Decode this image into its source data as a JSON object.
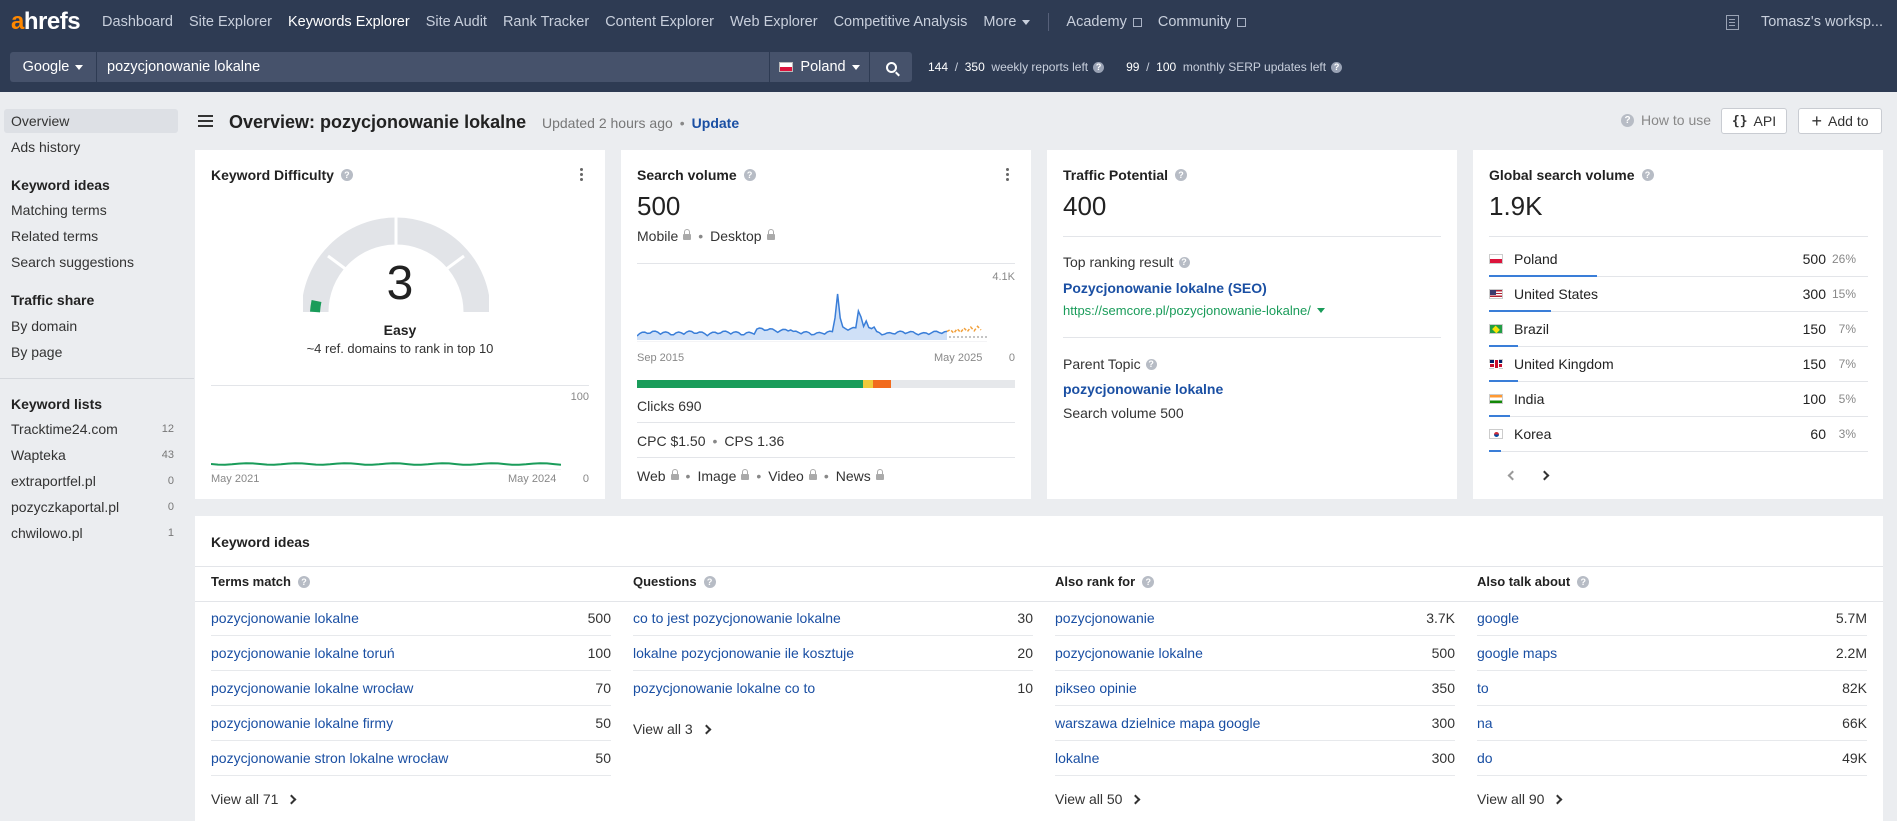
{
  "nav": {
    "logo_a": "a",
    "logo_rest": "hrefs",
    "items": [
      {
        "label": "Dashboard"
      },
      {
        "label": "Site Explorer"
      },
      {
        "label": "Keywords Explorer"
      },
      {
        "label": "Site Audit"
      },
      {
        "label": "Rank Tracker"
      },
      {
        "label": "Content Explorer"
      },
      {
        "label": "Web Explorer"
      },
      {
        "label": "Competitive Analysis"
      },
      {
        "label": "More"
      }
    ],
    "academy": "Academy",
    "community": "Community",
    "workspace": "Tomasz's worksp..."
  },
  "search": {
    "engine": "Google",
    "query": "pozycjonowanie lokalne",
    "country": "Poland",
    "weekly_used": "144",
    "weekly_total": "350",
    "weekly_label": "weekly reports left",
    "monthly_used": "99",
    "monthly_total": "100",
    "monthly_label": "monthly SERP updates left",
    "slash": "/"
  },
  "sidebar": {
    "overview": "Overview",
    "ads_history": "Ads history",
    "keyword_ideas_head": "Keyword ideas",
    "matching_terms": "Matching terms",
    "related_terms": "Related terms",
    "search_suggestions": "Search suggestions",
    "traffic_share_head": "Traffic share",
    "by_domain": "By domain",
    "by_page": "By page",
    "keyword_lists_head": "Keyword lists",
    "lists": [
      {
        "name": "Tracktime24.com",
        "count": "12"
      },
      {
        "name": "Wapteka",
        "count": "43"
      },
      {
        "name": "extraportfel.pl",
        "count": "0"
      },
      {
        "name": "pozyczkaportal.pl",
        "count": "0"
      },
      {
        "name": "chwilowo.pl",
        "count": "1"
      }
    ]
  },
  "header": {
    "title": "Overview: pozycjonowanie lokalne",
    "updated": "Updated 2 hours ago",
    "update_link": "Update",
    "how_to_use": "How to use",
    "api": "API",
    "add_to": "Add to"
  },
  "kd": {
    "title": "Keyword Difficulty",
    "value": "3",
    "label": "Easy",
    "sub": "~4 ref. domains to rank in top 10",
    "chart_start": "May 2021",
    "chart_end": "May 2024",
    "chart_max": "100",
    "chart_min": "0",
    "color_easy": "#1a9c5a"
  },
  "sv": {
    "title": "Search volume",
    "value": "500",
    "mobile": "Mobile",
    "desktop": "Desktop",
    "chart_max": "4.1K",
    "chart_min": "0",
    "chart_start": "Sep 2015",
    "chart_end": "May 2025",
    "clicks": "Clicks 690",
    "cpc": "CPC $1.50",
    "cps": "CPS 1.36",
    "web": "Web",
    "image": "Image",
    "video": "Video",
    "news": "News"
  },
  "tp": {
    "title": "Traffic Potential",
    "value": "400",
    "top_result_label": "Top ranking result",
    "top_result_title": "Pozycjonowanie lokalne (SEO)",
    "top_result_url": "https://semcore.pl/pozycjonowanie-lokalne/",
    "parent_label": "Parent Topic",
    "parent_topic": "pozycjonowanie lokalne",
    "parent_volume": "Search volume 500"
  },
  "gsv": {
    "title": "Global search volume",
    "value": "1.9K",
    "rows": [
      {
        "country": "Poland",
        "volume": "500",
        "pct": "26%",
        "share": 26
      },
      {
        "country": "United States",
        "volume": "300",
        "pct": "15%",
        "share": 15
      },
      {
        "country": "Brazil",
        "volume": "150",
        "pct": "7%",
        "share": 7
      },
      {
        "country": "United Kingdom",
        "volume": "150",
        "pct": "7%",
        "share": 7
      },
      {
        "country": "India",
        "volume": "100",
        "pct": "5%",
        "share": 5
      },
      {
        "country": "Korea",
        "volume": "60",
        "pct": "3%",
        "share": 3
      }
    ]
  },
  "ki": {
    "title": "Keyword ideas",
    "terms": {
      "title": "Terms match",
      "rows": [
        {
          "kw": "pozycjonowanie lokalne",
          "n": "500"
        },
        {
          "kw": "pozycjonowanie lokalne toruń",
          "n": "100"
        },
        {
          "kw": "pozycjonowanie lokalne wrocław",
          "n": "70"
        },
        {
          "kw": "pozycjonowanie lokalne firmy",
          "n": "50"
        },
        {
          "kw": "pozycjonowanie stron lokalne wrocław",
          "n": "50"
        }
      ],
      "view_all": "View all 71"
    },
    "questions": {
      "title": "Questions",
      "rows": [
        {
          "kw": "co to jest pozycjonowanie lokalne",
          "n": "30"
        },
        {
          "kw": "lokalne pozycjonowanie ile kosztuje",
          "n": "20"
        },
        {
          "kw": "pozycjonowanie lokalne co to",
          "n": "10"
        }
      ],
      "view_all": "View all 3"
    },
    "also_rank": {
      "title": "Also rank for",
      "rows": [
        {
          "kw": "pozycjonowanie",
          "n": "3.7K"
        },
        {
          "kw": "pozycjonowanie lokalne",
          "n": "500"
        },
        {
          "kw": "pikseo opinie",
          "n": "350"
        },
        {
          "kw": "warszawa dzielnice mapa google",
          "n": "300"
        },
        {
          "kw": "lokalne",
          "n": "300"
        }
      ],
      "view_all": "View all 50"
    },
    "also_talk": {
      "title": "Also talk about",
      "rows": [
        {
          "kw": "google",
          "n": "5.7M"
        },
        {
          "kw": "google maps",
          "n": "2.2M"
        },
        {
          "kw": "to",
          "n": "82K"
        },
        {
          "kw": "na",
          "n": "66K"
        },
        {
          "kw": "do",
          "n": "49K"
        }
      ],
      "view_all": "View all 90"
    }
  }
}
